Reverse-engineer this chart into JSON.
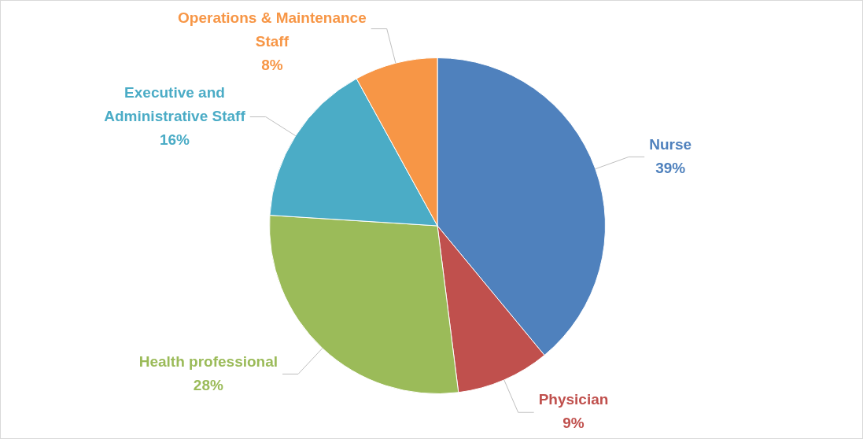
{
  "chart_data": {
    "type": "pie",
    "categories": [
      "Nurse",
      "Physician",
      "Health professional",
      "Executive and Administrative Staff",
      "Operations & Maintenance Staff"
    ],
    "values": [
      39,
      9,
      28,
      16,
      8
    ],
    "colors": [
      "#4f81bd",
      "#c0504d",
      "#9bbb59",
      "#4bacc6",
      "#f79646"
    ],
    "value_labels": [
      "39%",
      "9%",
      "28%",
      "16%",
      "8%"
    ],
    "legend": false
  }
}
